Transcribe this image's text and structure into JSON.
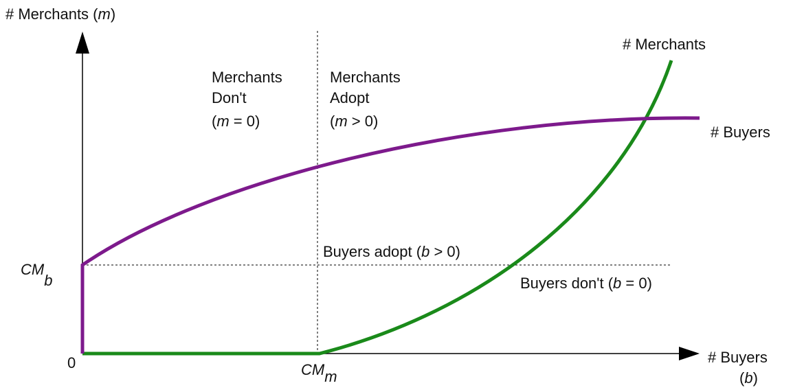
{
  "labels": {
    "y_axis": [
      "# Merchants (",
      "m",
      ")"
    ],
    "x_axis": [
      "# Buyers",
      "(",
      "b",
      ")"
    ],
    "origin": "0",
    "cm_b": [
      "CM",
      "b"
    ],
    "cm_m": [
      "CM",
      "m"
    ],
    "merchants_curve": "# Merchants",
    "buyers_curve": "# Buyers",
    "merchants_dont": [
      "Merchants",
      "Don't",
      "(",
      "m",
      " = 0)"
    ],
    "merchants_adopt": [
      "Merchants",
      "Adopt",
      "(",
      "m",
      " > 0)"
    ],
    "buyers_adopt": [
      "Buyers adopt (",
      "b",
      " > 0)"
    ],
    "buyers_dont": [
      "Buyers don't (",
      "b",
      " = 0)"
    ]
  }
}
